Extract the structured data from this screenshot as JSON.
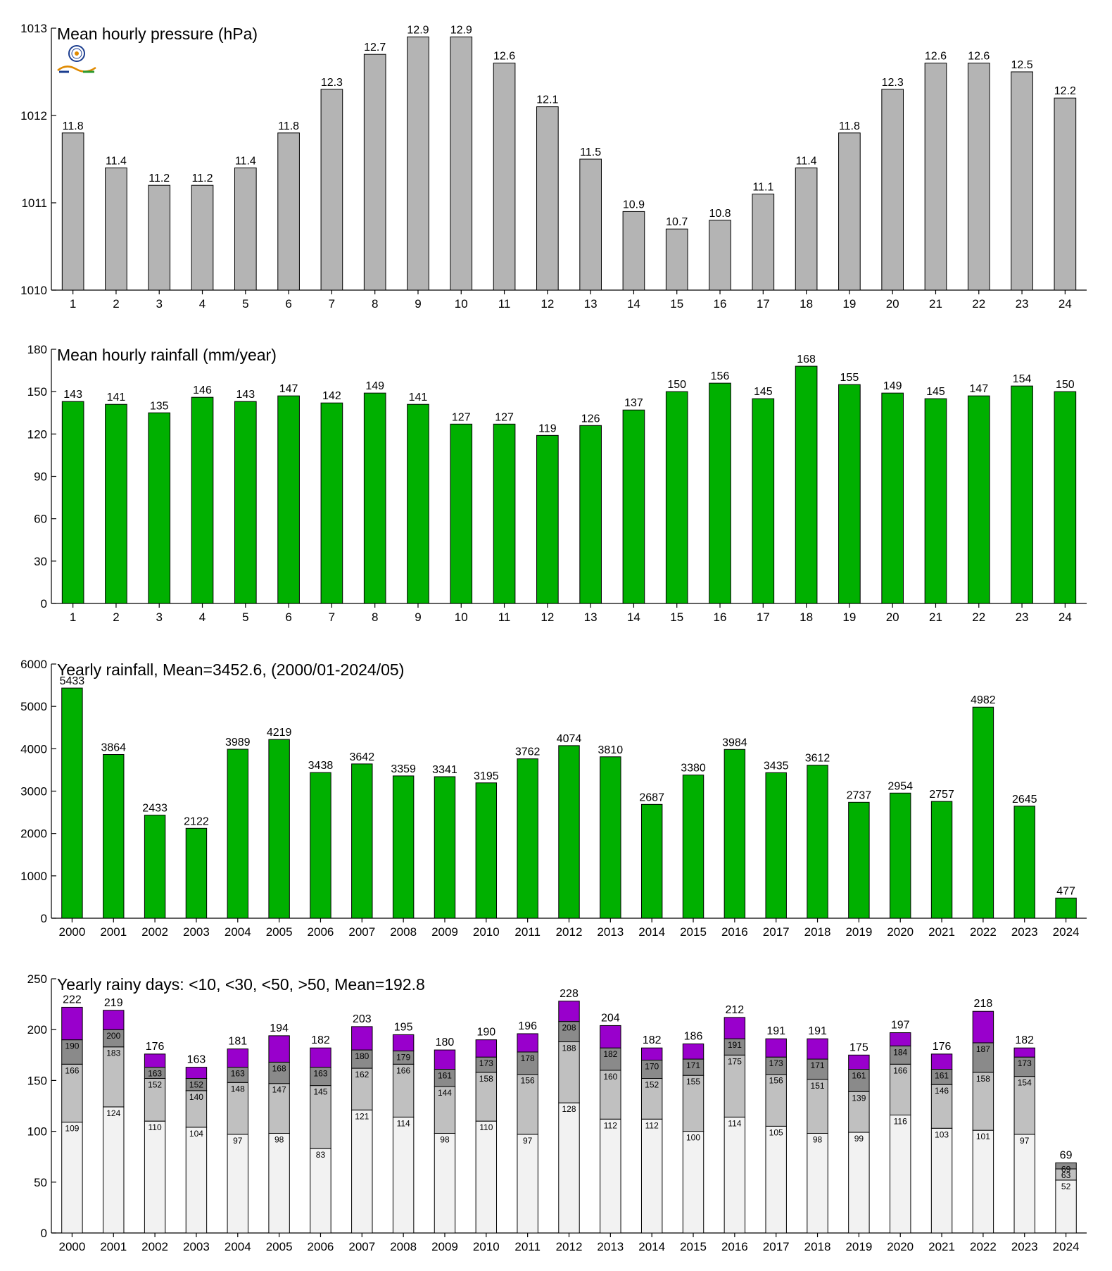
{
  "chart_data": [
    {
      "id": "pressure",
      "type": "bar",
      "title": "Mean hourly pressure (hPa)",
      "categories": [
        "1",
        "2",
        "3",
        "4",
        "5",
        "6",
        "7",
        "8",
        "9",
        "10",
        "11",
        "12",
        "13",
        "14",
        "15",
        "16",
        "17",
        "18",
        "19",
        "20",
        "21",
        "22",
        "23",
        "24"
      ],
      "values": [
        1011.8,
        1011.4,
        1011.2,
        1011.2,
        1011.4,
        1011.8,
        1012.3,
        1012.7,
        1012.9,
        1012.9,
        1012.6,
        1012.1,
        1011.5,
        1010.9,
        1010.7,
        1010.8,
        1011.1,
        1011.4,
        1011.8,
        1012.3,
        1012.6,
        1012.6,
        1012.5,
        1012.2
      ],
      "value_labels": [
        "11.8",
        "11.4",
        "11.2",
        "11.2",
        "11.4",
        "11.8",
        "12.3",
        "12.7",
        "12.9",
        "12.9",
        "12.6",
        "12.1",
        "11.5",
        "10.9",
        "10.7",
        "10.8",
        "11.1",
        "11.4",
        "11.8",
        "12.3",
        "12.6",
        "12.6",
        "12.5",
        "12.2"
      ],
      "ylim": [
        1010,
        1013
      ],
      "yticks": [
        1010,
        1011,
        1012,
        1013
      ],
      "color": "#b4b4b4",
      "grid": false
    },
    {
      "id": "hourly-rain",
      "type": "bar",
      "title": "Mean hourly rainfall (mm/year)",
      "categories": [
        "1",
        "2",
        "3",
        "4",
        "5",
        "6",
        "7",
        "8",
        "9",
        "10",
        "11",
        "12",
        "13",
        "14",
        "15",
        "16",
        "17",
        "18",
        "19",
        "20",
        "21",
        "22",
        "23",
        "24"
      ],
      "values": [
        143,
        141,
        135,
        146,
        143,
        147,
        142,
        149,
        141,
        127,
        127,
        119,
        126,
        137,
        150,
        156,
        145,
        168,
        155,
        149,
        145,
        147,
        154,
        150
      ],
      "value_labels": [
        "143",
        "141",
        "135",
        "146",
        "143",
        "147",
        "142",
        "149",
        "141",
        "127",
        "127",
        "119",
        "126",
        "137",
        "150",
        "156",
        "145",
        "168",
        "155",
        "149",
        "145",
        "147",
        "154",
        "150"
      ],
      "ylim": [
        0,
        180
      ],
      "yticks": [
        0,
        30,
        60,
        90,
        120,
        150,
        180
      ],
      "color": "#00b000",
      "grid": false
    },
    {
      "id": "yearly-rain",
      "type": "bar",
      "title": "Yearly rainfall, Mean=3452.6, (2000/01-2024/05)",
      "categories": [
        "2000",
        "2001",
        "2002",
        "2003",
        "2004",
        "2005",
        "2006",
        "2007",
        "2008",
        "2009",
        "2010",
        "2011",
        "2012",
        "2013",
        "2014",
        "2015",
        "2016",
        "2017",
        "2018",
        "2019",
        "2020",
        "2021",
        "2022",
        "2023",
        "2024"
      ],
      "values": [
        5433,
        3864,
        2433,
        2122,
        3989,
        4219,
        3438,
        3642,
        3359,
        3341,
        3195,
        3762,
        4074,
        3810,
        2687,
        3380,
        3984,
        3435,
        3612,
        2737,
        2954,
        2757,
        4982,
        2645,
        477
      ],
      "value_labels": [
        "5433",
        "3864",
        "2433",
        "2122",
        "3989",
        "4219",
        "3438",
        "3642",
        "3359",
        "3341",
        "3195",
        "3762",
        "4074",
        "3810",
        "2687",
        "3380",
        "3984",
        "3435",
        "3612",
        "2737",
        "2954",
        "2757",
        "4982",
        "2645",
        "477"
      ],
      "ylim": [
        0,
        6000
      ],
      "yticks": [
        0,
        1000,
        2000,
        3000,
        4000,
        5000,
        6000
      ],
      "color": "#00b000",
      "grid": false
    },
    {
      "id": "rainy-days",
      "type": "bar",
      "stacked": true,
      "title": "Yearly rainy days: <10, <30, <50, >50, Mean=192.8",
      "categories": [
        "2000",
        "2001",
        "2002",
        "2003",
        "2004",
        "2005",
        "2006",
        "2007",
        "2008",
        "2009",
        "2010",
        "2011",
        "2012",
        "2013",
        "2014",
        "2015",
        "2016",
        "2017",
        "2018",
        "2019",
        "2020",
        "2021",
        "2022",
        "2023",
        "2024"
      ],
      "cumulative": [
        [
          109,
          166,
          190,
          222
        ],
        [
          124,
          183,
          200,
          219
        ],
        [
          110,
          152,
          163,
          176
        ],
        [
          104,
          140,
          152,
          163
        ],
        [
          97,
          148,
          163,
          181
        ],
        [
          98,
          147,
          168,
          194
        ],
        [
          83,
          145,
          163,
          182
        ],
        [
          121,
          162,
          180,
          203
        ],
        [
          114,
          166,
          179,
          195
        ],
        [
          98,
          144,
          161,
          180
        ],
        [
          110,
          158,
          173,
          190
        ],
        [
          97,
          156,
          178,
          196
        ],
        [
          128,
          188,
          208,
          228
        ],
        [
          112,
          160,
          182,
          204
        ],
        [
          112,
          152,
          170,
          182
        ],
        [
          100,
          155,
          171,
          186
        ],
        [
          114,
          175,
          191,
          212
        ],
        [
          105,
          156,
          173,
          191
        ],
        [
          98,
          151,
          171,
          191
        ],
        [
          99,
          139,
          161,
          175
        ],
        [
          116,
          166,
          184,
          197
        ],
        [
          103,
          146,
          161,
          176
        ],
        [
          101,
          158,
          187,
          218
        ],
        [
          97,
          154,
          173,
          182
        ],
        [
          52,
          63,
          69,
          69
        ]
      ],
      "segment_labels": [
        [
          "109",
          "166",
          "190"
        ],
        [
          "124",
          "183",
          "200"
        ],
        [
          "110",
          "152",
          "163"
        ],
        [
          "104",
          "140",
          "152"
        ],
        [
          "97",
          "148",
          "163"
        ],
        [
          "98",
          "147",
          "168"
        ],
        [
          "83",
          "145",
          "163"
        ],
        [
          "121",
          "162",
          "180"
        ],
        [
          "114",
          "166",
          "179"
        ],
        [
          "98",
          "144",
          "161"
        ],
        [
          "110",
          "158",
          "173"
        ],
        [
          "97",
          "156",
          "178"
        ],
        [
          "128",
          "188",
          "208"
        ],
        [
          "112",
          "160",
          "182"
        ],
        [
          "112",
          "152",
          "170"
        ],
        [
          "100",
          "155",
          "171"
        ],
        [
          "114",
          "175",
          "191"
        ],
        [
          "105",
          "156",
          "173"
        ],
        [
          "98",
          "151",
          "171"
        ],
        [
          "99",
          "139",
          "161"
        ],
        [
          "116",
          "166",
          "184"
        ],
        [
          "103",
          "146",
          "161"
        ],
        [
          "101",
          "158",
          "187"
        ],
        [
          "97",
          "154",
          "173"
        ],
        [
          "52",
          "63",
          "69"
        ]
      ],
      "total_labels": [
        "222",
        "219",
        "176",
        "163",
        "181",
        "194",
        "182",
        "203",
        "195",
        "180",
        "190",
        "196",
        "228",
        "204",
        "182",
        "186",
        "212",
        "191",
        "191",
        "175",
        "197",
        "176",
        "218",
        "182",
        "69"
      ],
      "ylim": [
        0,
        250
      ],
      "yticks": [
        0,
        50,
        100,
        150,
        200,
        250
      ],
      "colors": [
        "#f2f2f2",
        "#c0c0c0",
        "#8a8a8a",
        "#9900cc"
      ],
      "grid": false
    }
  ],
  "colors": {
    "logo_ring": "#1b3d8f",
    "logo_text_1": "#1b3d8f",
    "logo_text_2": "#e08a00",
    "logo_text_3": "#2e9a2e"
  }
}
